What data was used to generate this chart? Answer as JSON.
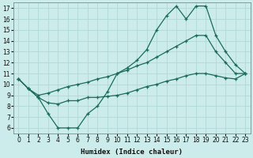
{
  "xlabel": "Humidex (Indice chaleur)",
  "bg_color": "#cbecea",
  "grid_color": "#b0d8d4",
  "line_color": "#1a6b5a",
  "marker": "+",
  "xlim": [
    -0.5,
    23.5
  ],
  "ylim": [
    5.5,
    17.5
  ],
  "xticks": [
    0,
    1,
    2,
    3,
    4,
    5,
    6,
    7,
    8,
    9,
    10,
    11,
    12,
    13,
    14,
    15,
    16,
    17,
    18,
    19,
    20,
    21,
    22,
    23
  ],
  "yticks": [
    6,
    7,
    8,
    9,
    10,
    11,
    12,
    13,
    14,
    15,
    16,
    17
  ],
  "line1_x": [
    0,
    1,
    2,
    3,
    4,
    5,
    6,
    7,
    8,
    9,
    10,
    11,
    12,
    13,
    14,
    15,
    16,
    17,
    18,
    19,
    20,
    21,
    22,
    23
  ],
  "line1_y": [
    10.5,
    9.6,
    8.8,
    7.3,
    6.0,
    6.0,
    6.0,
    7.3,
    8.0,
    9.3,
    11.0,
    11.5,
    12.2,
    13.2,
    15.0,
    16.3,
    17.2,
    16.0,
    17.2,
    17.2,
    14.5,
    13.0,
    11.8,
    11.0
  ],
  "line2_x": [
    0,
    1,
    2,
    3,
    4,
    5,
    6,
    7,
    8,
    9,
    10,
    11,
    12,
    13,
    14,
    15,
    16,
    17,
    18,
    19,
    20,
    21,
    22,
    23
  ],
  "line2_y": [
    10.5,
    9.6,
    9.0,
    9.2,
    9.5,
    9.8,
    10.0,
    10.2,
    10.5,
    10.7,
    11.0,
    11.3,
    11.7,
    12.0,
    12.5,
    13.0,
    13.5,
    14.0,
    14.5,
    14.5,
    13.0,
    12.0,
    11.0,
    11.0
  ],
  "line3_x": [
    0,
    1,
    2,
    3,
    4,
    5,
    6,
    7,
    8,
    9,
    10,
    11,
    12,
    13,
    14,
    15,
    16,
    17,
    18,
    19,
    20,
    21,
    22,
    23
  ],
  "line3_y": [
    10.5,
    9.6,
    8.8,
    8.3,
    8.2,
    8.5,
    8.5,
    8.8,
    8.8,
    8.9,
    9.0,
    9.2,
    9.5,
    9.8,
    10.0,
    10.3,
    10.5,
    10.8,
    11.0,
    11.0,
    10.8,
    10.6,
    10.5,
    11.0
  ],
  "tick_fontsize": 5.5,
  "xlabel_fontsize": 6.5
}
